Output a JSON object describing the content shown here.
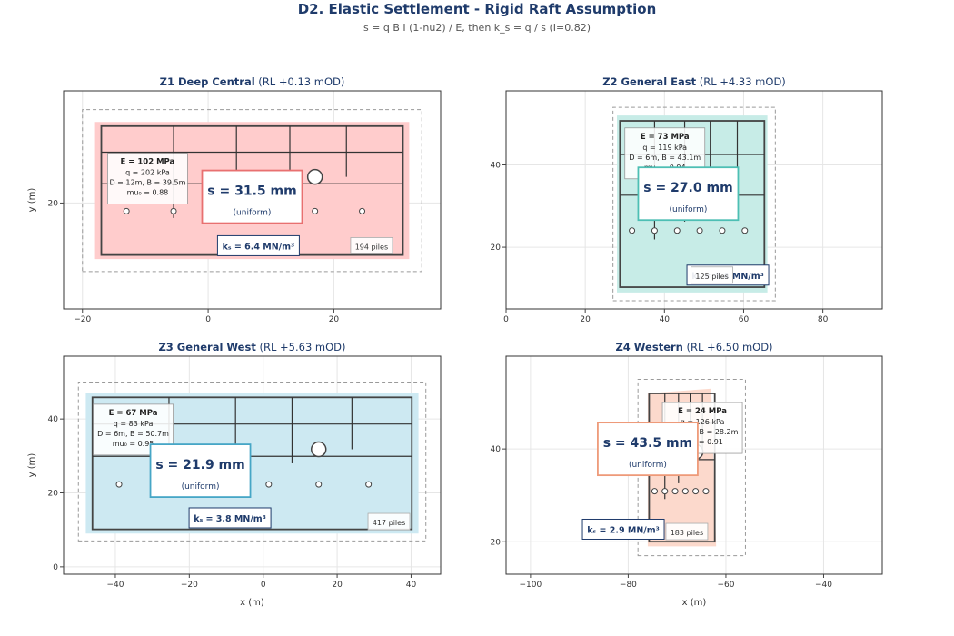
{
  "title": "D2. Elastic Settlement - Rigid Raft Assumption",
  "subtitle": "s = q B I (1-nu2) / E, then k_s = q / s (I=0.82)",
  "colors": {
    "title": "#1f3b6b",
    "grid": "#e6e6e6",
    "text": "#333333",
    "dash": "#9a9a9a"
  },
  "chart_data": [
    {
      "type": "map",
      "panel_title": "Z1 Deep Central",
      "panel_rl": "(RL +0.13 mOD)",
      "xlabel": "",
      "ylabel": "y (m)",
      "xlim": [
        -23,
        37
      ],
      "ylim": [
        3,
        38
      ],
      "xticks": [
        -20,
        0,
        20
      ],
      "yticks": [
        20
      ],
      "fill_color": "#ffcccc",
      "accent_color": "#e87070",
      "raft": [
        [
          -18,
          11
        ],
        [
          32,
          11
        ],
        [
          32,
          33
        ],
        [
          -18,
          33
        ]
      ],
      "boundary": [
        [
          -20,
          9
        ],
        [
          34,
          9
        ],
        [
          34,
          35
        ],
        [
          -20,
          35
        ]
      ],
      "info": {
        "title": "E = 102 MPa",
        "lines": [
          "q = 202 kPa",
          "D = 12m, B = 39.5m",
          "mu₀ = 0.88"
        ],
        "at": [
          -16,
          28
        ]
      },
      "settlement": {
        "value": "s = 31.5 mm",
        "note": "(uniform)",
        "at": [
          7,
          21
        ]
      },
      "ks": {
        "label": "kₛ = 6.4 MN/m³",
        "at": [
          8,
          13
        ]
      },
      "piles": {
        "label": "194 piles",
        "at": [
          26,
          13
        ]
      }
    },
    {
      "type": "map",
      "panel_title": "Z2 General East",
      "panel_rl": "(RL +4.33 mOD)",
      "xlabel": "",
      "ylabel": "",
      "xlim": [
        0,
        95
      ],
      "ylim": [
        5,
        58
      ],
      "xticks": [
        0,
        20,
        40,
        60,
        80
      ],
      "yticks": [
        20,
        40
      ],
      "fill_color": "#c7ece7",
      "accent_color": "#4dbfb4",
      "raft": [
        [
          28,
          9
        ],
        [
          66,
          9
        ],
        [
          66,
          52
        ],
        [
          28,
          52
        ]
      ],
      "boundary": [
        [
          27,
          7
        ],
        [
          68,
          7
        ],
        [
          68,
          54
        ],
        [
          27,
          54
        ]
      ],
      "info": {
        "title": "E = 73 MPa",
        "lines": [
          "q = 119 kPa",
          "D = 6m, B = 43.1m",
          "mu₀ = 0.94"
        ],
        "at": [
          30,
          49
        ]
      },
      "settlement": {
        "value": "s = 27.0 mm",
        "note": "(uniform)",
        "at": [
          46,
          33
        ]
      },
      "ks": {
        "label": "kₛ = 4.4 MN/m³",
        "at": [
          56,
          13
        ]
      },
      "piles": {
        "label": "125 piles",
        "at": [
          52,
          13
        ]
      }
    },
    {
      "type": "map",
      "panel_title": "Z3 General West",
      "panel_rl": "(RL +5.63 mOD)",
      "xlabel": "x (m)",
      "ylabel": "y (m)",
      "xlim": [
        -54,
        48
      ],
      "ylim": [
        -2,
        57
      ],
      "xticks": [
        -40,
        -20,
        0,
        20,
        40
      ],
      "yticks": [
        0,
        20,
        40
      ],
      "fill_color": "#cde9f2",
      "accent_color": "#46a6c6",
      "raft": [
        [
          -48,
          9
        ],
        [
          42,
          9
        ],
        [
          42,
          47
        ],
        [
          -48,
          47
        ]
      ],
      "boundary": [
        [
          -50,
          7
        ],
        [
          44,
          7
        ],
        [
          44,
          50
        ],
        [
          -50,
          50
        ]
      ],
      "info": {
        "title": "E = 67 MPa",
        "lines": [
          "q = 83 kPa",
          "D = 6m, B = 50.7m",
          "mu₀ = 0.95"
        ],
        "at": [
          -46,
          44
        ]
      },
      "settlement": {
        "value": "s = 21.9 mm",
        "note": "(uniform)",
        "at": [
          -17,
          26
        ]
      },
      "ks": {
        "label": "kₛ = 3.8 MN/m³",
        "at": [
          -9,
          13
        ]
      },
      "piles": {
        "label": "417 piles",
        "at": [
          34,
          12
        ]
      }
    },
    {
      "type": "map",
      "panel_title": "Z4 Western",
      "panel_rl": "(RL +6.50 mOD)",
      "xlabel": "x (m)",
      "ylabel": "",
      "xlim": [
        -105,
        -28
      ],
      "ylim": [
        13,
        60
      ],
      "xticks": [
        -100,
        -80,
        -60,
        -40
      ],
      "yticks": [
        20,
        40
      ],
      "fill_color": "#fcd9cc",
      "accent_color": "#ee9a79",
      "raft": [
        [
          -76,
          19
        ],
        [
          -62,
          19
        ],
        [
          -63,
          53
        ],
        [
          -76,
          52
        ]
      ],
      "boundary": [
        [
          -78,
          17
        ],
        [
          -56,
          17
        ],
        [
          -56,
          55
        ],
        [
          -78,
          55
        ]
      ],
      "info": {
        "title": "E = 24 MPa",
        "lines": [
          "q = 126 kPa",
          "D = 6m, B = 28.2m",
          "mu₀ = 0.91"
        ],
        "at": [
          -73,
          50
        ]
      },
      "settlement": {
        "value": "s = 43.5 mm",
        "note": "(uniform)",
        "at": [
          -76,
          40
        ]
      },
      "ks": {
        "label": "kₛ = 2.9 MN/m³",
        "at": [
          -81,
          22.5
        ]
      },
      "piles": {
        "label": "183 piles",
        "at": [
          -68,
          22
        ]
      }
    }
  ]
}
